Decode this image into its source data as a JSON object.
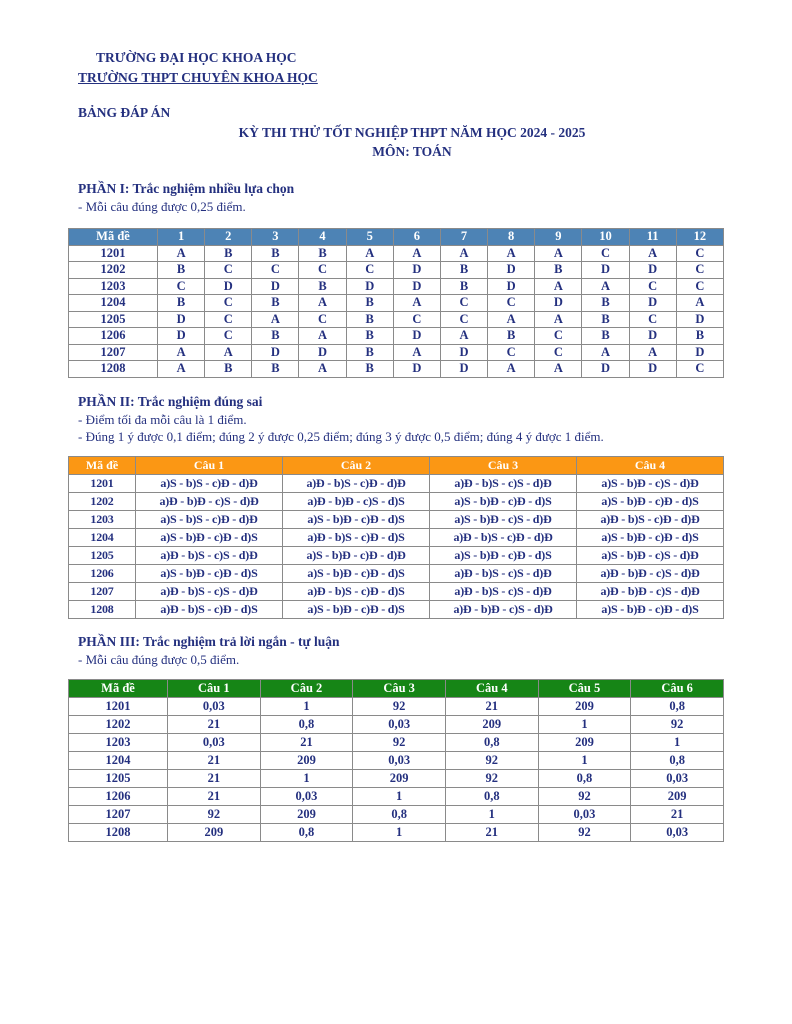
{
  "page": {
    "org_line1": "TRƯỜNG ĐẠI HỌC KHOA HỌC",
    "org_line2": "TRƯỜNG THPT CHUYÊN KHOA HỌC",
    "doc_title": "BẢNG ĐÁP ÁN",
    "exam_title": "KỲ THI THỬ TỐT NGHIỆP THPT NĂM HỌC 2024 - 2025",
    "subject": "MÔN: TOÁN"
  },
  "colors": {
    "navy": "#24307f",
    "table1_header_bg": "#4d83b5",
    "table2_header_bg": "#fb9714",
    "table3_header_bg": "#168516",
    "border": "#8a8a8a"
  },
  "part1": {
    "heading": "PHẦN I: Trắc nghiệm nhiều lựa chọn",
    "notes": [
      "- Mỗi câu đúng được 0,25 điểm."
    ],
    "table": {
      "headers": [
        "Mã đề",
        "1",
        "2",
        "3",
        "4",
        "5",
        "6",
        "7",
        "8",
        "9",
        "10",
        "11",
        "12"
      ],
      "rows": [
        {
          "code": "1201",
          "answers": [
            "A",
            "B",
            "B",
            "B",
            "A",
            "A",
            "A",
            "A",
            "A",
            "C",
            "A",
            "C"
          ]
        },
        {
          "code": "1202",
          "answers": [
            "B",
            "C",
            "C",
            "C",
            "C",
            "D",
            "B",
            "D",
            "B",
            "D",
            "D",
            "C"
          ]
        },
        {
          "code": "1203",
          "answers": [
            "C",
            "D",
            "D",
            "B",
            "D",
            "D",
            "B",
            "D",
            "A",
            "A",
            "C",
            "C"
          ]
        },
        {
          "code": "1204",
          "answers": [
            "B",
            "C",
            "B",
            "A",
            "B",
            "A",
            "C",
            "C",
            "D",
            "B",
            "D",
            "A"
          ]
        },
        {
          "code": "1205",
          "answers": [
            "D",
            "C",
            "A",
            "C",
            "B",
            "C",
            "C",
            "A",
            "A",
            "B",
            "C",
            "D"
          ]
        },
        {
          "code": "1206",
          "answers": [
            "D",
            "C",
            "B",
            "A",
            "B",
            "D",
            "A",
            "B",
            "C",
            "B",
            "D",
            "B"
          ]
        },
        {
          "code": "1207",
          "answers": [
            "A",
            "A",
            "D",
            "D",
            "B",
            "A",
            "D",
            "C",
            "C",
            "A",
            "A",
            "D"
          ]
        },
        {
          "code": "1208",
          "answers": [
            "A",
            "B",
            "B",
            "A",
            "B",
            "D",
            "D",
            "A",
            "A",
            "D",
            "D",
            "C"
          ]
        }
      ]
    }
  },
  "part2": {
    "heading": "PHẦN II: Trắc nghiệm đúng sai",
    "notes": [
      "- Điểm tối đa mỗi câu là 1 điểm.",
      "- Đúng 1 ý được 0,1 điểm; đúng 2 ý được 0,25 điểm; đúng 3 ý được 0,5 điểm; đúng 4 ý được 1 điểm."
    ],
    "table": {
      "headers": [
        "Mã đề",
        "Câu 1",
        "Câu 2",
        "Câu 3",
        "Câu 4"
      ],
      "rows": [
        {
          "code": "1201",
          "answers": [
            "a)S - b)S - c)Đ - d)Đ",
            "a)Đ - b)S - c)Đ - d)Đ",
            "a)Đ - b)S - c)S - d)Đ",
            "a)S - b)Đ - c)S - d)Đ"
          ]
        },
        {
          "code": "1202",
          "answers": [
            "a)Đ - b)Đ - c)S - d)Đ",
            "a)Đ - b)Đ - c)S - d)S",
            "a)S - b)Đ - c)Đ - d)S",
            "a)S - b)Đ - c)Đ - d)S"
          ]
        },
        {
          "code": "1203",
          "answers": [
            "a)S - b)S - c)Đ - d)Đ",
            "a)S - b)Đ - c)Đ - d)S",
            "a)S - b)Đ - c)S - d)Đ",
            "a)Đ - b)S - c)Đ - d)Đ"
          ]
        },
        {
          "code": "1204",
          "answers": [
            "a)S - b)Đ - c)Đ - d)S",
            "a)Đ - b)S - c)Đ - d)S",
            "a)Đ - b)S - c)Đ - d)Đ",
            "a)S - b)Đ - c)Đ - d)S"
          ]
        },
        {
          "code": "1205",
          "answers": [
            "a)Đ - b)S - c)S - d)Đ",
            "a)S - b)Đ - c)Đ - d)Đ",
            "a)S - b)Đ - c)Đ - d)S",
            "a)S - b)Đ - c)S - d)Đ"
          ]
        },
        {
          "code": "1206",
          "answers": [
            "a)S - b)Đ - c)Đ - d)S",
            "a)S - b)Đ - c)Đ - d)S",
            "a)Đ - b)S - c)S - d)Đ",
            "a)Đ - b)Đ - c)S - d)Đ"
          ]
        },
        {
          "code": "1207",
          "answers": [
            "a)Đ - b)S - c)S - d)Đ",
            "a)Đ - b)S - c)Đ - d)S",
            "a)Đ - b)S - c)S - d)Đ",
            "a)Đ - b)Đ - c)S - d)Đ"
          ]
        },
        {
          "code": "1208",
          "answers": [
            "a)Đ - b)S - c)Đ - d)S",
            "a)S - b)Đ - c)Đ - d)S",
            "a)Đ - b)Đ - c)S - d)Đ",
            "a)S - b)Đ - c)Đ - d)S"
          ]
        }
      ]
    }
  },
  "part3": {
    "heading": "PHẦN III: Trắc nghiệm trả lời ngắn - tự luận",
    "notes": [
      "- Mỗi câu đúng được 0,5 điểm."
    ],
    "table": {
      "headers": [
        "Mã đề",
        "Câu 1",
        "Câu 2",
        "Câu 3",
        "Câu 4",
        "Câu 5",
        "Câu 6"
      ],
      "rows": [
        {
          "code": "1201",
          "answers": [
            "0,03",
            "1",
            "92",
            "21",
            "209",
            "0,8"
          ]
        },
        {
          "code": "1202",
          "answers": [
            "21",
            "0,8",
            "0,03",
            "209",
            "1",
            "92"
          ]
        },
        {
          "code": "1203",
          "answers": [
            "0,03",
            "21",
            "92",
            "0,8",
            "209",
            "1"
          ]
        },
        {
          "code": "1204",
          "answers": [
            "21",
            "209",
            "0,03",
            "92",
            "1",
            "0,8"
          ]
        },
        {
          "code": "1205",
          "answers": [
            "21",
            "1",
            "209",
            "92",
            "0,8",
            "0,03"
          ]
        },
        {
          "code": "1206",
          "answers": [
            "21",
            "0,03",
            "1",
            "0,8",
            "92",
            "209"
          ]
        },
        {
          "code": "1207",
          "answers": [
            "92",
            "209",
            "0,8",
            "1",
            "0,03",
            "21"
          ]
        },
        {
          "code": "1208",
          "answers": [
            "209",
            "0,8",
            "1",
            "21",
            "92",
            "0,03"
          ]
        }
      ]
    }
  }
}
